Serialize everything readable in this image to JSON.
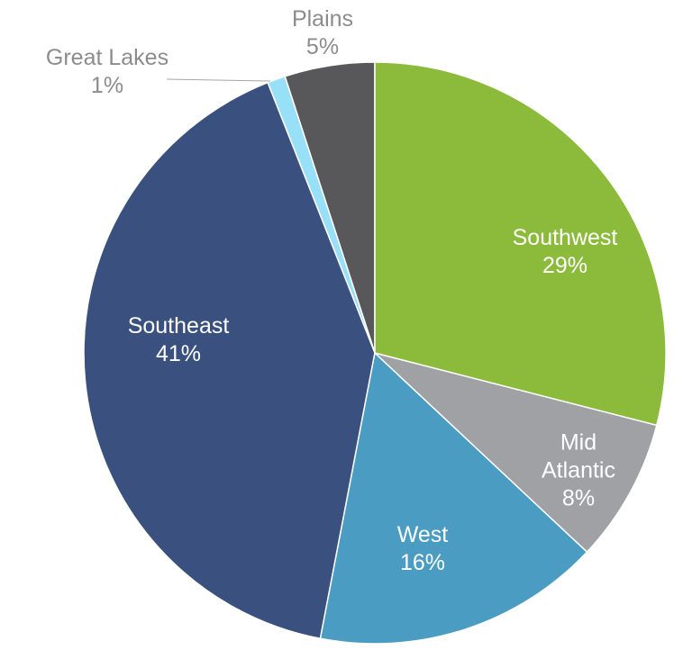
{
  "chart_data": {
    "type": "pie",
    "categories": [
      "Southwest",
      "Mid Atlantic",
      "West",
      "Southeast",
      "Great Lakes",
      "Plains"
    ],
    "values": [
      29,
      8,
      16,
      41,
      1,
      5
    ],
    "value_labels": [
      "29%",
      "8%",
      "16%",
      "41%",
      "1%",
      "5%"
    ],
    "colors": [
      "#8cbb3c",
      "#a0a1a4",
      "#4a9cc2",
      "#3a5180",
      "#98e0f8",
      "#58585a"
    ]
  }
}
